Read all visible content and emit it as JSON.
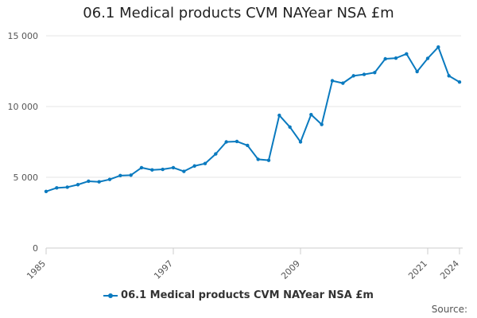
{
  "chart_data": {
    "type": "line",
    "title": "06.1 Medical products CVM NAYear NSA £m",
    "xlabel": "",
    "ylabel": "",
    "x": [
      1985,
      1986,
      1987,
      1988,
      1989,
      1990,
      1991,
      1992,
      1993,
      1994,
      1995,
      1996,
      1997,
      1998,
      1999,
      2000,
      2001,
      2002,
      2003,
      2004,
      2005,
      2006,
      2007,
      2008,
      2009,
      2010,
      2011,
      2012,
      2013,
      2014,
      2015,
      2016,
      2017,
      2018,
      2019,
      2020,
      2021,
      2022,
      2023,
      2024
    ],
    "series": [
      {
        "name": "06.1 Medical products CVM NAYear NSA £m",
        "color": "#0a7abf",
        "values": [
          4000,
          4250,
          4300,
          4480,
          4720,
          4680,
          4850,
          5120,
          5150,
          5680,
          5520,
          5560,
          5680,
          5420,
          5800,
          5970,
          6650,
          7500,
          7530,
          7250,
          6270,
          6200,
          9380,
          8550,
          7500,
          9430,
          8730,
          11820,
          11650,
          12170,
          12270,
          12400,
          13370,
          13420,
          13720,
          12470,
          13400,
          14200,
          12170,
          11730
        ]
      }
    ],
    "xlim": [
      1985,
      2024
    ],
    "ylim": [
      0,
      15000
    ],
    "x_ticks": [
      "1985",
      "1997",
      "2009",
      "2021",
      "2024"
    ],
    "y_ticks": [
      "0",
      "5 000",
      "10 000",
      "15 000"
    ],
    "grid": "horizontal",
    "legend": "bottom-center",
    "source_label": "Source:"
  }
}
